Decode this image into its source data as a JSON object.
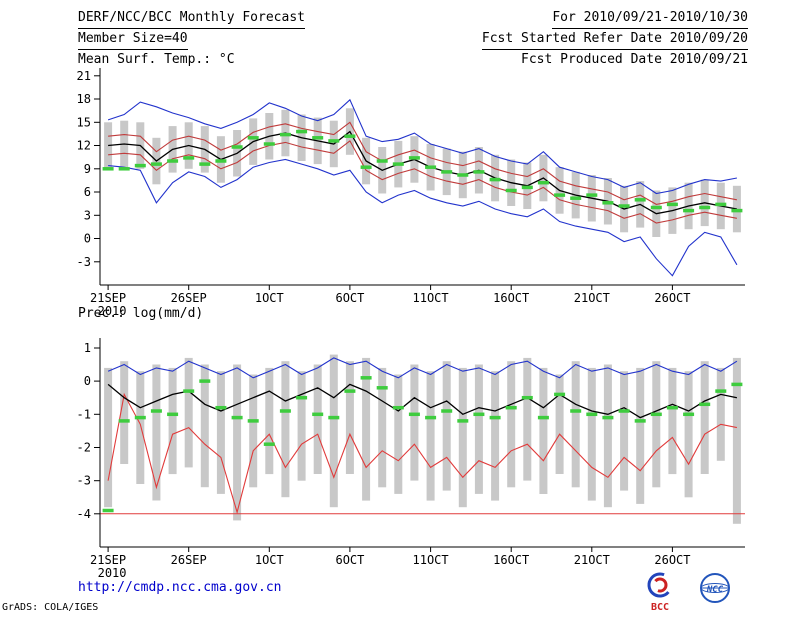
{
  "header": {
    "title": "DERF/NCC/BCC Monthly Forecast",
    "member_size": "Member Size=40",
    "valid_range": "For 2010/09/21-2010/10/30",
    "refer_date": "Fcst Started Refer Date 2010/09/20",
    "produced_date": "Fcst Produced Date 2010/09/21"
  },
  "footer": {
    "url": "http://cmdp.ncc.cma.gov.cn",
    "credit": "GrADS: COLA/IGES",
    "logos": [
      {
        "label": "BCC"
      },
      {
        "label": "NCC"
      }
    ]
  },
  "chart_data": [
    {
      "type": "line",
      "title": "Mean Surf. Temp.: °C",
      "ylabel": "°C",
      "ylim": [
        -6,
        22
      ],
      "yticks": [
        21,
        18,
        15,
        12,
        9,
        6,
        3,
        0,
        -3
      ],
      "x_days": 40,
      "xticks": [
        "21SEP",
        "26SEP",
        "1OCT",
        "6OCT",
        "11OCT",
        "16OCT",
        "21OCT",
        "26OCT"
      ],
      "xtick_days": [
        0,
        5,
        10,
        15,
        20,
        25,
        30,
        35
      ],
      "x_year": "2010",
      "grid": false,
      "bars": {
        "name": "ensemble-spread",
        "color": "#c8c8c8",
        "high": [
          15.0,
          15.2,
          15.0,
          13.0,
          14.5,
          15.0,
          14.5,
          13.2,
          14.0,
          15.5,
          16.2,
          16.6,
          16.0,
          15.6,
          15.2,
          16.8,
          13.0,
          11.8,
          12.6,
          13.2,
          12.2,
          11.6,
          11.2,
          11.8,
          10.8,
          10.2,
          9.8,
          10.8,
          9.2,
          8.6,
          8.2,
          7.8,
          6.8,
          7.4,
          6.2,
          6.6,
          7.2,
          7.6,
          7.2,
          6.8
        ],
        "low": [
          9.0,
          9.2,
          9.0,
          7.0,
          8.5,
          9.0,
          8.5,
          7.2,
          8.0,
          9.5,
          10.2,
          10.6,
          10.0,
          9.6,
          9.2,
          10.8,
          7.0,
          5.8,
          6.6,
          7.2,
          6.2,
          5.6,
          5.2,
          5.8,
          4.8,
          4.2,
          3.8,
          4.8,
          3.2,
          2.6,
          2.2,
          1.8,
          0.8,
          1.4,
          0.2,
          0.6,
          1.2,
          1.6,
          1.2,
          0.8
        ]
      },
      "series": [
        {
          "name": "ensemble-min",
          "color": "#2233cc",
          "width": 1.1,
          "values": [
            9.4,
            9.2,
            8.8,
            4.6,
            7.2,
            8.6,
            8.0,
            6.6,
            7.6,
            9.2,
            9.8,
            10.2,
            9.6,
            9.0,
            8.2,
            8.8,
            6.0,
            4.6,
            5.6,
            6.2,
            5.2,
            4.6,
            4.2,
            4.8,
            3.8,
            3.2,
            2.8,
            3.8,
            2.2,
            1.6,
            1.2,
            0.8,
            -0.4,
            0.2,
            -2.6,
            -4.8,
            -1.0,
            0.8,
            0.2,
            -3.4
          ]
        },
        {
          "name": "mean-minus-spread",
          "color": "#c03b3b",
          "width": 1.1,
          "values": [
            10.8,
            11.0,
            10.8,
            8.8,
            10.3,
            10.8,
            10.3,
            9.0,
            9.8,
            11.3,
            12.0,
            12.4,
            11.8,
            11.4,
            11.0,
            12.6,
            8.8,
            7.6,
            8.4,
            9.0,
            8.0,
            7.4,
            7.0,
            7.6,
            6.6,
            6.0,
            5.6,
            6.6,
            5.0,
            4.4,
            4.0,
            3.6,
            2.6,
            3.2,
            2.0,
            2.4,
            3.0,
            3.4,
            3.0,
            2.6
          ]
        },
        {
          "name": "ensemble-mean",
          "color": "#000000",
          "width": 1.3,
          "values": [
            12.0,
            12.2,
            12.0,
            10.0,
            11.5,
            12.0,
            11.5,
            10.2,
            11.0,
            12.5,
            13.2,
            13.6,
            13.0,
            12.6,
            12.2,
            13.8,
            10.0,
            8.8,
            9.6,
            10.2,
            9.2,
            8.6,
            8.2,
            8.8,
            7.8,
            7.2,
            6.8,
            7.8,
            6.2,
            5.6,
            5.2,
            4.8,
            3.8,
            4.4,
            3.2,
            3.6,
            4.2,
            4.6,
            4.2,
            3.8
          ]
        },
        {
          "name": "mean-plus-spread",
          "color": "#c03b3b",
          "width": 1.1,
          "values": [
            13.2,
            13.4,
            13.2,
            11.2,
            12.7,
            13.2,
            12.7,
            11.4,
            12.2,
            13.7,
            14.4,
            14.8,
            14.2,
            13.8,
            13.4,
            15.0,
            11.2,
            10.0,
            10.8,
            11.4,
            10.4,
            9.8,
            9.4,
            10.0,
            9.0,
            8.4,
            8.0,
            9.0,
            7.4,
            6.8,
            6.4,
            6.0,
            5.0,
            5.6,
            4.4,
            4.8,
            5.4,
            5.8,
            5.4,
            5.0
          ]
        },
        {
          "name": "ensemble-max",
          "color": "#2233cc",
          "width": 1.1,
          "values": [
            15.3,
            16.0,
            17.6,
            17.0,
            16.2,
            15.6,
            14.8,
            14.2,
            15.0,
            16.0,
            17.5,
            16.8,
            15.8,
            15.2,
            16.0,
            17.9,
            13.2,
            12.5,
            12.8,
            13.6,
            12.2,
            11.6,
            11.0,
            11.6,
            10.6,
            10.0,
            9.6,
            11.2,
            9.2,
            8.6,
            8.0,
            7.6,
            6.6,
            7.2,
            5.8,
            6.2,
            7.0,
            7.6,
            7.4,
            7.8
          ]
        }
      ],
      "obs": {
        "name": "observation-dashes",
        "color": "#3ecc3e",
        "values": [
          9.0,
          9.0,
          9.4,
          9.6,
          10.0,
          10.4,
          9.6,
          10.0,
          11.8,
          13.0,
          12.2,
          13.4,
          13.8,
          13.0,
          12.6,
          13.2,
          9.2,
          10.0,
          9.6,
          10.4,
          9.2,
          8.6,
          8.2,
          8.6,
          7.6,
          6.2,
          6.6,
          7.2,
          5.6,
          5.2,
          5.6,
          4.6,
          4.2,
          5.0,
          4.0,
          4.4,
          3.6,
          4.0,
          4.4,
          3.6
        ]
      }
    },
    {
      "type": "line",
      "title": "Prec.: log(mm/d)",
      "ylabel": "log(mm/d)",
      "ylim": [
        -5,
        1.3
      ],
      "yticks": [
        1,
        0,
        -1,
        -2,
        -3,
        -4
      ],
      "x_days": 40,
      "xticks": [
        "21SEP",
        "26SEP",
        "1OCT",
        "6OCT",
        "11OCT",
        "16OCT",
        "21OCT",
        "26OCT"
      ],
      "xtick_days": [
        0,
        5,
        10,
        15,
        20,
        25,
        30,
        35
      ],
      "x_year": "2010",
      "grid": false,
      "baseline": {
        "value": -4,
        "color": "#e13b3b"
      },
      "bars": {
        "name": "ensemble-spread",
        "color": "#c8c8c8",
        "high": [
          0.4,
          0.6,
          0.3,
          0.5,
          0.4,
          0.7,
          0.5,
          0.3,
          0.5,
          0.2,
          0.4,
          0.6,
          0.3,
          0.5,
          0.8,
          0.6,
          0.7,
          0.4,
          0.2,
          0.5,
          0.3,
          0.6,
          0.4,
          0.5,
          0.3,
          0.6,
          0.7,
          0.4,
          0.2,
          0.6,
          0.4,
          0.5,
          0.3,
          0.4,
          0.6,
          0.4,
          0.3,
          0.6,
          0.4,
          0.7
        ],
        "low": [
          -3.8,
          -2.5,
          -3.1,
          -3.6,
          -2.8,
          -2.6,
          -3.2,
          -3.4,
          -4.2,
          -3.2,
          -2.8,
          -3.5,
          -3.0,
          -2.8,
          -3.8,
          -2.8,
          -3.6,
          -3.2,
          -3.4,
          -3.0,
          -3.6,
          -3.3,
          -3.8,
          -3.4,
          -3.6,
          -3.2,
          -3.0,
          -3.4,
          -2.8,
          -3.2,
          -3.6,
          -3.8,
          -3.3,
          -3.7,
          -3.2,
          -2.8,
          -3.5,
          -2.8,
          -2.4,
          -4.3
        ]
      },
      "series": [
        {
          "name": "ensemble-min",
          "color": "#e13b3b",
          "width": 1.1,
          "values": [
            -3.0,
            -0.4,
            -1.3,
            -3.2,
            -1.6,
            -1.4,
            -1.9,
            -2.3,
            -3.95,
            -2.1,
            -1.6,
            -2.6,
            -1.9,
            -1.6,
            -2.9,
            -1.6,
            -2.6,
            -2.1,
            -2.4,
            -1.9,
            -2.6,
            -2.3,
            -2.9,
            -2.4,
            -2.6,
            -2.1,
            -1.9,
            -2.4,
            -1.6,
            -2.1,
            -2.6,
            -2.9,
            -2.3,
            -2.7,
            -2.1,
            -1.7,
            -2.5,
            -1.6,
            -1.3,
            -1.4
          ]
        },
        {
          "name": "ensemble-mean",
          "color": "#000000",
          "width": 1.3,
          "values": [
            -0.1,
            -0.5,
            -0.8,
            -0.6,
            -0.4,
            -0.3,
            -0.7,
            -0.9,
            -0.7,
            -0.5,
            -0.3,
            -0.6,
            -0.4,
            -0.2,
            -0.5,
            -0.1,
            -0.3,
            -0.6,
            -0.9,
            -0.5,
            -0.8,
            -0.6,
            -1.0,
            -0.8,
            -0.9,
            -0.7,
            -0.5,
            -0.8,
            -0.4,
            -0.7,
            -0.9,
            -1.0,
            -0.8,
            -1.1,
            -0.9,
            -0.7,
            -0.9,
            -0.6,
            -0.4,
            -0.5
          ]
        },
        {
          "name": "ensemble-max",
          "color": "#2233cc",
          "width": 1.1,
          "values": [
            0.3,
            0.5,
            0.2,
            0.4,
            0.3,
            0.6,
            0.4,
            0.2,
            0.4,
            0.1,
            0.3,
            0.5,
            0.2,
            0.4,
            0.7,
            0.5,
            0.6,
            0.3,
            0.1,
            0.4,
            0.2,
            0.5,
            0.3,
            0.4,
            0.2,
            0.5,
            0.6,
            0.3,
            0.1,
            0.5,
            0.3,
            0.4,
            0.2,
            0.3,
            0.5,
            0.3,
            0.2,
            0.5,
            0.3,
            0.6
          ]
        }
      ],
      "obs": {
        "name": "observation-dashes",
        "color": "#3ecc3e",
        "values": [
          -3.9,
          -1.2,
          -1.1,
          -0.9,
          -1.0,
          -0.3,
          0.0,
          -0.8,
          -1.1,
          -1.2,
          -1.9,
          -0.9,
          -0.5,
          -1.0,
          -1.1,
          -0.3,
          0.1,
          -0.2,
          -0.8,
          -1.0,
          -1.1,
          -0.9,
          -1.2,
          -1.0,
          -1.1,
          -0.8,
          -0.5,
          -1.1,
          -0.4,
          -0.9,
          -1.0,
          -1.1,
          -0.9,
          -1.2,
          -1.0,
          -0.8,
          -1.0,
          -0.7,
          -0.3,
          -0.1
        ]
      }
    }
  ]
}
